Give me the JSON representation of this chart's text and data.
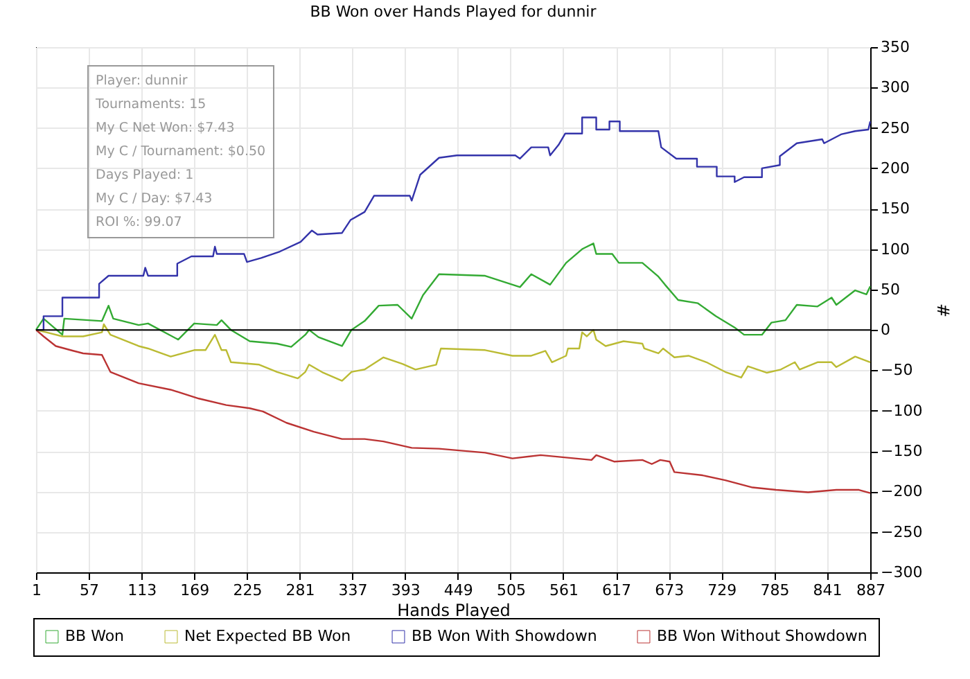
{
  "chart_data": {
    "type": "line",
    "title": "BB Won over Hands Played for dunnir",
    "xlabel": "Hands Played",
    "ylabel": "#",
    "xlim": [
      1,
      887
    ],
    "xticks": [
      1,
      57,
      113,
      169,
      225,
      281,
      337,
      393,
      449,
      505,
      561,
      617,
      673,
      729,
      785,
      841,
      887
    ],
    "ylim": [
      -300,
      350
    ],
    "yticks": [
      -300,
      -250,
      -200,
      -150,
      -100,
      -50,
      0,
      50,
      100,
      150,
      200,
      250,
      300,
      350
    ],
    "grid": true,
    "legend": "bottom left",
    "marker": "none",
    "line_style": "solid",
    "ref_lines": [
      {
        "axis": "y",
        "value": 0,
        "color": "#000000"
      }
    ],
    "annotations": [
      "Player: dunnir",
      "Tournaments: 15",
      "My C Net Won: $7.43",
      "My C / Tournament: $0.50",
      "Days Played: 1",
      "My C / Day: $7.43",
      "ROI %: 99.07"
    ],
    "series": [
      {
        "name": "BB Won",
        "color": "#33aa33",
        "x": [
          1,
          9,
          29,
          31,
          71,
          78,
          83,
          110,
          120,
          152,
          169,
          193,
          198,
          208,
          228,
          257,
          272,
          287,
          291,
          301,
          326,
          336,
          350,
          365,
          385,
          400,
          412,
          429,
          478,
          515,
          527,
          547,
          564,
          581,
          593,
          596,
          613,
          620,
          645,
          662,
          669,
          683,
          704,
          723,
          743,
          753,
          772,
          782,
          797,
          809,
          831,
          846,
          851,
          871,
          883,
          887
        ],
        "values": [
          0,
          14,
          -6,
          14,
          11,
          30,
          14,
          6,
          8,
          -12,
          8,
          6,
          12,
          0,
          -14,
          -17,
          -21,
          -6,
          0,
          -9,
          -20,
          0,
          11,
          30,
          31,
          14,
          43,
          69,
          67,
          53,
          69,
          56,
          83,
          100,
          107,
          94,
          94,
          83,
          83,
          66,
          56,
          37,
          33,
          17,
          3,
          -6,
          -6,
          9,
          12,
          31,
          29,
          40,
          31,
          49,
          44,
          54
        ]
      },
      {
        "name": "Net Expected BB Won",
        "color": "#bbbb33",
        "x": [
          1,
          12,
          29,
          51,
          71,
          73,
          80,
          110,
          120,
          144,
          169,
          181,
          191,
          198,
          203,
          208,
          238,
          257,
          279,
          287,
          291,
          306,
          326,
          336,
          350,
          370,
          390,
          404,
          426,
          431,
          478,
          507,
          527,
          542,
          549,
          564,
          566,
          578,
          581,
          586,
          593,
          596,
          606,
          625,
          645,
          647,
          662,
          667,
          679,
          694,
          713,
          733,
          750,
          757,
          777,
          792,
          807,
          812,
          831,
          846,
          851,
          871,
          887
        ],
        "values": [
          0,
          -3,
          -8,
          -8,
          -3,
          7,
          -6,
          -20,
          -23,
          -33,
          -25,
          -25,
          -6,
          -25,
          -25,
          -40,
          -43,
          -52,
          -60,
          -52,
          -43,
          -53,
          -63,
          -52,
          -49,
          -34,
          -42,
          -49,
          -43,
          -23,
          -25,
          -32,
          -32,
          -26,
          -40,
          -32,
          -23,
          -23,
          -3,
          -8,
          0,
          -12,
          -20,
          -14,
          -17,
          -23,
          -29,
          -23,
          -34,
          -32,
          -40,
          -52,
          -59,
          -45,
          -53,
          -49,
          -40,
          -49,
          -40,
          -40,
          -46,
          -33,
          -40
        ]
      },
      {
        "name": "BB Won With Showdown",
        "color": "#3333aa",
        "x": [
          1,
          9,
          9,
          29,
          29,
          68,
          68,
          78,
          115,
          117,
          120,
          151,
          151,
          166,
          189,
          191,
          193,
          222,
          225,
          240,
          260,
          282,
          294,
          300,
          326,
          335,
          350,
          360,
          398,
          400,
          409,
          429,
          448,
          510,
          515,
          527,
          545,
          547,
          556,
          563,
          581,
          581,
          596,
          596,
          610,
          610,
          621,
          621,
          662,
          665,
          681,
          703,
          703,
          724,
          724,
          743,
          743,
          753,
          772,
          772,
          791,
          791,
          809,
          836,
          838,
          856,
          871,
          885,
          887
        ],
        "values": [
          0,
          0,
          17,
          17,
          40,
          40,
          57,
          67,
          67,
          77,
          67,
          67,
          82,
          91,
          91,
          103,
          94,
          94,
          84,
          89,
          97,
          109,
          123,
          118,
          120,
          136,
          146,
          166,
          166,
          160,
          192,
          213,
          216,
          216,
          212,
          226,
          226,
          216,
          229,
          243,
          243,
          263,
          263,
          248,
          248,
          258,
          258,
          246,
          246,
          226,
          212,
          212,
          202,
          202,
          190,
          190,
          183,
          189,
          189,
          200,
          204,
          215,
          231,
          236,
          231,
          242,
          246,
          248,
          258
        ]
      },
      {
        "name": "BB Won Without Showdown",
        "color": "#bb3333",
        "x": [
          1,
          9,
          22,
          41,
          51,
          71,
          80,
          110,
          144,
          174,
          203,
          228,
          242,
          267,
          296,
          326,
          350,
          370,
          400,
          429,
          478,
          507,
          537,
          591,
          596,
          615,
          645,
          655,
          664,
          674,
          679,
          709,
          733,
          762,
          787,
          821,
          851,
          875,
          887
        ],
        "values": [
          0,
          -8,
          -20,
          -26,
          -29,
          -31,
          -52,
          -66,
          -74,
          -85,
          -93,
          -97,
          -101,
          -115,
          -126,
          -135,
          -135,
          -138,
          -146,
          -147,
          -152,
          -159,
          -155,
          -161,
          -155,
          -163,
          -161,
          -166,
          -161,
          -163,
          -176,
          -180,
          -186,
          -195,
          -198,
          -201,
          -198,
          -198,
          -202
        ]
      }
    ]
  }
}
